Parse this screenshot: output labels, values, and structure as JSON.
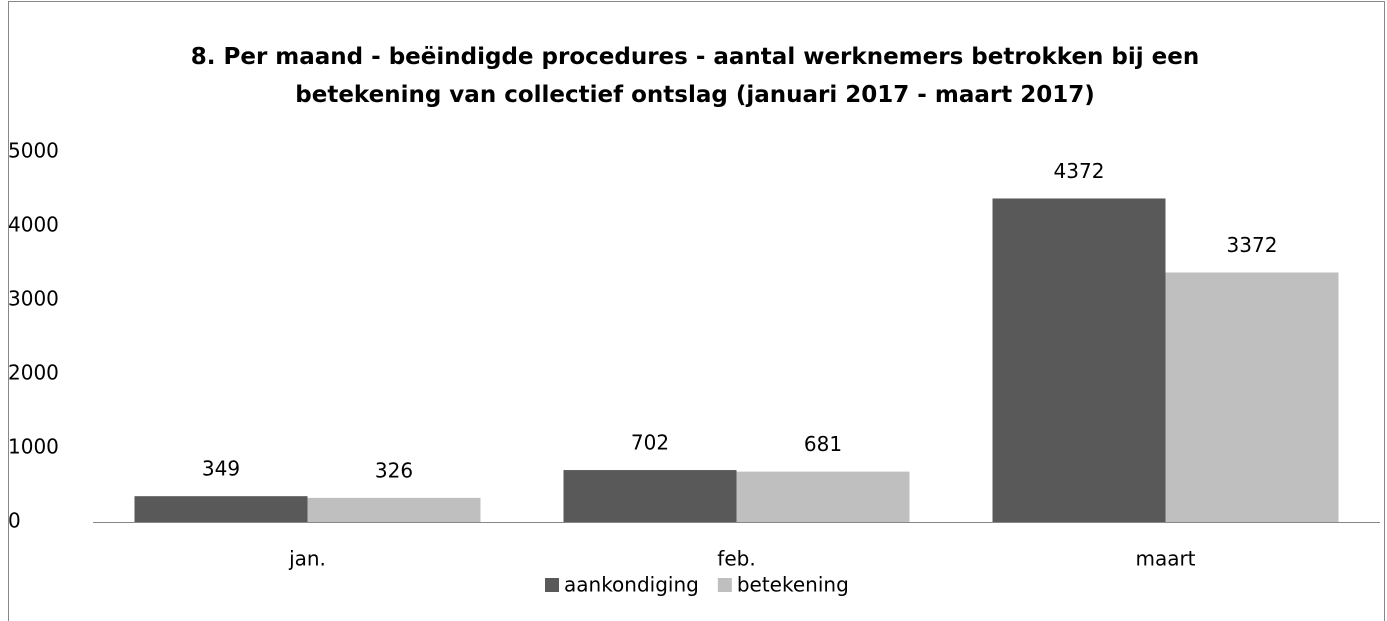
{
  "chart_data": {
    "type": "bar",
    "title": "8. Per maand - beëindigde procedures - aantal werknemers betrokken bij een betekening van collectief ontslag (januari 2017 - maart 2017)",
    "categories": [
      "jan.",
      "feb.",
      "maart"
    ],
    "series": [
      {
        "name": "aankondiging",
        "color": "#595959",
        "values": [
          349,
          702,
          4372
        ]
      },
      {
        "name": "betekening",
        "color": "#bfbfbf",
        "values": [
          326,
          681,
          3372
        ]
      }
    ],
    "ylim": [
      0,
      5000
    ],
    "yticks": [
      0,
      1000,
      2000,
      3000,
      4000,
      5000
    ],
    "grid": false,
    "legend": "bottom"
  }
}
